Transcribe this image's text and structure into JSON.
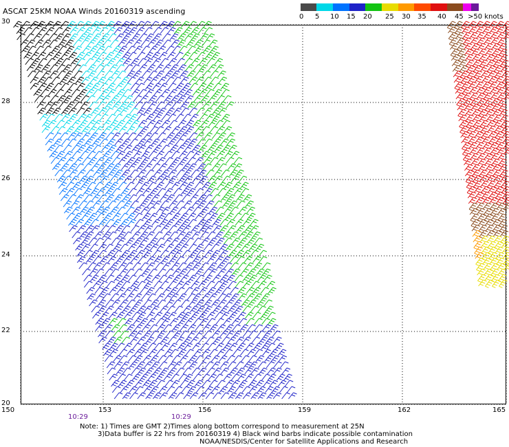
{
  "title": "ASCAT 25KM NOAA Winds 20160319 ascending",
  "legend": {
    "units": ">50 knots",
    "bins": [
      {
        "label": "0",
        "color": "#4a4a4a"
      },
      {
        "label": "5",
        "color": "#00d8e8"
      },
      {
        "label": "10",
        "color": "#0073ff"
      },
      {
        "label": "15",
        "color": "#1e22c8"
      },
      {
        "label": "20",
        "color": "#12c412"
      },
      {
        "label": "25",
        "color": "#e8dc00"
      },
      {
        "label": "30",
        "color": "#ff9a00"
      },
      {
        "label": "35",
        "color": "#ff4a00"
      },
      {
        "label": "40",
        "color": "#e01010"
      },
      {
        "label": "45",
        "color": "#8a4b1e"
      },
      {
        "label": "",
        "color": "#ee00ee"
      },
      {
        "label": "",
        "color": "#6a1b9a"
      }
    ]
  },
  "axes": {
    "latitudes": [
      "30",
      "28",
      "26",
      "24",
      "22",
      "20"
    ],
    "longitudes": [
      "150",
      "153",
      "156",
      "159",
      "162",
      "165"
    ]
  },
  "pass_times": [
    "10:29",
    "10:29"
  ],
  "notes": [
    "Note: 1) Times are GMT 2)Times along bottom correspond to measurement at 25N",
    "3)Data buffer is 22 hrs from 20160319 4) Black wind barbs indicate possible contamination",
    "NOAA/NESDIS/Center for Satellite Applications and Research"
  ],
  "colors": {
    "contaminated": "#000000",
    "light": "#00d8e8",
    "moderate": "#0073ff",
    "fresh": "#1e22c8",
    "strong": "#12c412",
    "near_gale": "#e8dc00",
    "gale": "#ff9a00",
    "severe": "#e01010",
    "storm": "#8a4b1e",
    "grid": "#000000",
    "time_text": "#6a1b9a"
  },
  "swaths": [
    "main-ascending-swath",
    "east-edge-swath"
  ]
}
